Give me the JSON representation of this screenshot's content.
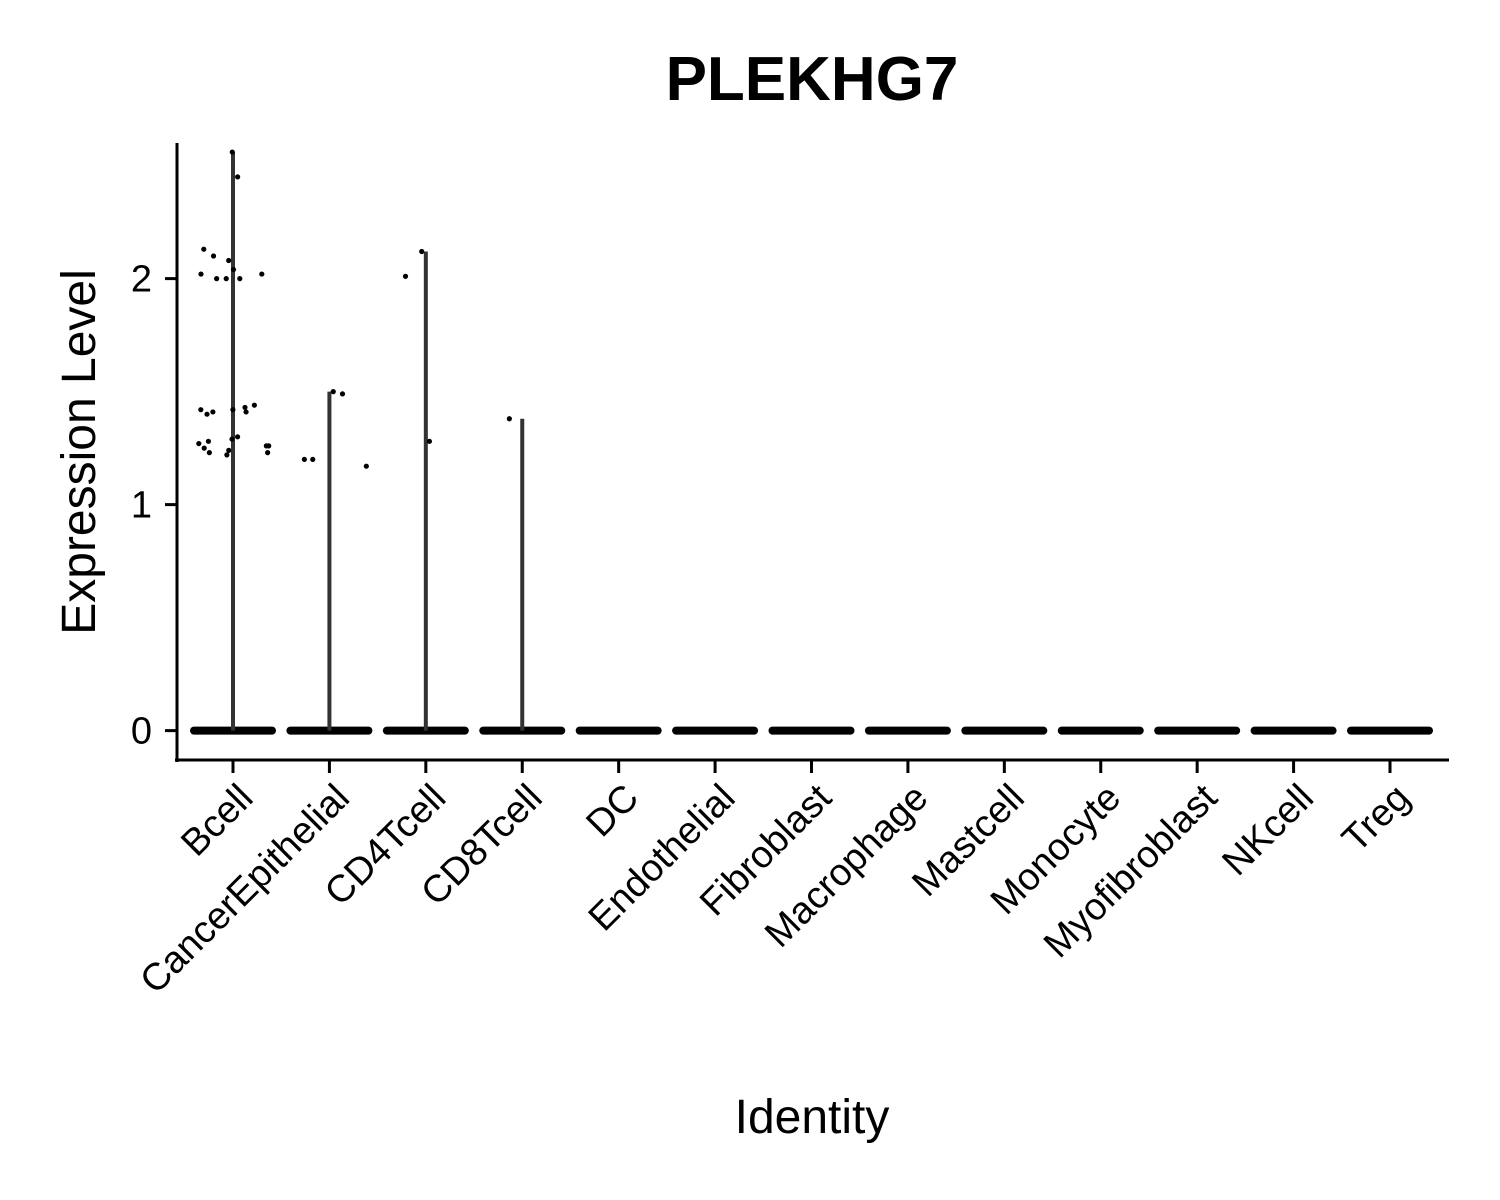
{
  "chart_data": {
    "type": "violin",
    "title": "PLEKHG7",
    "xlabel": "Identity",
    "ylabel": "Expression Level",
    "ylim": [
      -0.13,
      2.6
    ],
    "yticks": [
      0,
      1,
      2
    ],
    "categories": [
      "Bcell",
      "CancerEpithelial",
      "CD4Tcell",
      "CD8Tcell",
      "DC",
      "Endothelial",
      "Fibroblast",
      "Macrophage",
      "Mastcell",
      "Monocyte",
      "Myofibroblast",
      "NKcell",
      "Treg"
    ],
    "max_values": [
      2.56,
      1.5,
      2.12,
      1.38,
      0,
      0,
      0,
      0,
      0,
      0,
      0,
      0,
      0
    ],
    "nonzero_points": [
      [
        2.56,
        2.45,
        2.13,
        2.1,
        2.08,
        2.04,
        2.02,
        2.02,
        2.0,
        2.0,
        2.0,
        1.44,
        1.43,
        1.42,
        1.42,
        1.41,
        1.41,
        1.4,
        1.3,
        1.29,
        1.28,
        1.27,
        1.26,
        1.26,
        1.25,
        1.24,
        1.23,
        1.23,
        1.22
      ],
      [
        1.5,
        1.49,
        1.2,
        1.2,
        1.17
      ],
      [
        2.12,
        2.01,
        1.28
      ],
      [
        1.38
      ],
      [],
      [],
      [],
      [],
      [],
      [],
      [],
      [],
      []
    ]
  }
}
